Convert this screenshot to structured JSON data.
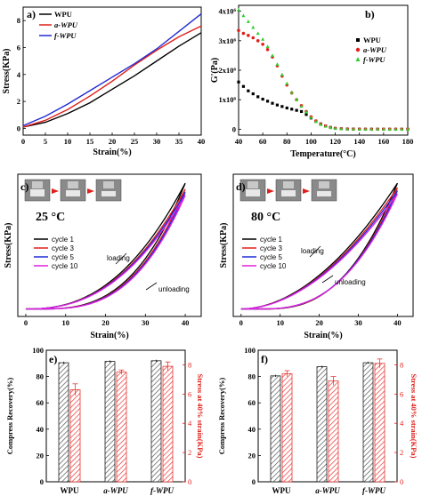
{
  "colors": {
    "black": "#000000",
    "red": "#e0201b",
    "blue": "#1f2bd6",
    "magenta": "#e020e0",
    "green": "#33cc33",
    "bar_gray": "#555555",
    "bar_red": "#ee3333"
  },
  "chart_data": [
    {
      "panel": "a)",
      "type": "line",
      "xlabel": "Strain(%)",
      "ylabel": "Stress(KPa)",
      "xlim": [
        0,
        40
      ],
      "ylim": [
        -0.5,
        9
      ],
      "xticks": [
        0,
        5,
        10,
        15,
        20,
        25,
        30,
        35,
        40
      ],
      "yticks": [
        0,
        2,
        4,
        6,
        8
      ],
      "legend_position": "top-left",
      "series": [
        {
          "name": "WPU",
          "color": "#000000",
          "x": [
            0,
            5,
            10,
            15,
            20,
            25,
            30,
            35,
            40
          ],
          "y": [
            0.1,
            0.45,
            1.1,
            1.9,
            2.9,
            3.9,
            5.0,
            6.1,
            7.1
          ]
        },
        {
          "name": "a-WPU",
          "color": "#e0201b",
          "x": [
            0,
            5,
            10,
            15,
            20,
            25,
            30,
            35,
            40
          ],
          "y": [
            0.1,
            0.6,
            1.4,
            2.4,
            3.5,
            4.7,
            5.8,
            6.8,
            7.6
          ]
        },
        {
          "name": "f-WPU",
          "color": "#1f2bd6",
          "x": [
            0,
            5,
            10,
            15,
            20,
            25,
            30,
            35,
            40
          ],
          "y": [
            0.2,
            0.9,
            1.8,
            2.8,
            3.8,
            4.8,
            5.9,
            7.2,
            8.5
          ]
        }
      ]
    },
    {
      "panel": "b)",
      "type": "scatter",
      "xlabel": "Temperature(°C)",
      "ylabel": "G'(Pa)",
      "xlim": [
        40,
        180
      ],
      "ylim": [
        -200000,
        4200000
      ],
      "xticks": [
        40,
        60,
        80,
        100,
        120,
        140,
        160,
        180
      ],
      "yticks": [
        0,
        1000000,
        2000000,
        3000000,
        4000000
      ],
      "ytick_labels": [
        "0",
        "1x10⁶",
        "2x10⁶",
        "3x10⁶",
        "4x10⁶"
      ],
      "legend_position": "right",
      "series": [
        {
          "name": "WPU",
          "color": "#000000",
          "marker": "square",
          "x": [
            40,
            44,
            48,
            52,
            56,
            60,
            64,
            68,
            72,
            76,
            80,
            84,
            88,
            92,
            96,
            100,
            104,
            108,
            112,
            116,
            120,
            125,
            130,
            135,
            140,
            145,
            150,
            155,
            160,
            165,
            170,
            175,
            180
          ],
          "y": [
            1600000,
            1450000,
            1300000,
            1200000,
            1100000,
            1020000,
            950000,
            880000,
            820000,
            770000,
            720000,
            680000,
            640000,
            600000,
            500000,
            380000,
            270000,
            180000,
            110000,
            60000,
            30000,
            15000,
            8000,
            5000,
            3000,
            2000,
            1500,
            1000,
            800,
            600,
            500,
            400,
            300
          ]
        },
        {
          "name": "a-WPU",
          "color": "#e0201b",
          "marker": "circle",
          "x": [
            40,
            44,
            48,
            52,
            56,
            60,
            64,
            68,
            72,
            76,
            80,
            84,
            88,
            92,
            96,
            100,
            104,
            108,
            112,
            116,
            120,
            125,
            130,
            135,
            140,
            145,
            150,
            155,
            160,
            165,
            170,
            175,
            180
          ],
          "y": [
            3350000,
            3250000,
            3180000,
            3100000,
            3000000,
            2880000,
            2700000,
            2450000,
            2150000,
            1800000,
            1500000,
            1230000,
            1000000,
            800000,
            600000,
            420000,
            280000,
            180000,
            110000,
            60000,
            30000,
            15000,
            8000,
            5000,
            3000,
            2000,
            1500,
            1000,
            800,
            600,
            500,
            400,
            300
          ]
        },
        {
          "name": "f-WPU",
          "color": "#33cc33",
          "marker": "triangle",
          "x": [
            40,
            44,
            48,
            52,
            56,
            60,
            64,
            68,
            72,
            76,
            80,
            84,
            88,
            92,
            96,
            100,
            104,
            108,
            112,
            116,
            120,
            125,
            130,
            135,
            140,
            145,
            150,
            155,
            160,
            165,
            170,
            175,
            180
          ],
          "y": [
            4050000,
            3850000,
            3650000,
            3450000,
            3250000,
            3050000,
            2800000,
            2500000,
            2200000,
            1850000,
            1550000,
            1250000,
            1000000,
            780000,
            580000,
            400000,
            260000,
            160000,
            100000,
            55000,
            30000,
            15000,
            8000,
            5000,
            3000,
            2000,
            1500,
            1000,
            800,
            600,
            500,
            400,
            300
          ]
        }
      ]
    },
    {
      "panel": "c)",
      "type": "line",
      "temperature_label": "25 °C",
      "xlabel": "Strain(%)",
      "ylabel": "Stress(KPa)",
      "xlim": [
        -2,
        44
      ],
      "ylim": [
        -0.5,
        9
      ],
      "xticks": [
        0,
        10,
        20,
        30,
        40
      ],
      "annotations": [
        "loading",
        "unloading"
      ],
      "legend_position": "left",
      "series": [
        {
          "name": "cycle 1",
          "color": "#000000",
          "peak": 8.4,
          "unload_shift": 3.0
        },
        {
          "name": "cycle 3",
          "color": "#e0201b",
          "peak": 8.0,
          "unload_shift": 3.2
        },
        {
          "name": "cycle 5",
          "color": "#1f2bd6",
          "peak": 7.8,
          "unload_shift": 3.4
        },
        {
          "name": "cycle 10",
          "color": "#e020e0",
          "peak": 7.6,
          "unload_shift": 3.6
        }
      ]
    },
    {
      "panel": "d)",
      "type": "line",
      "temperature_label": "80 °C",
      "xlabel": "Strain(%)",
      "ylabel": "Stress(KPa)",
      "xlim": [
        -2,
        44
      ],
      "ylim": [
        -0.5,
        9
      ],
      "xticks": [
        0,
        10,
        20,
        30,
        40
      ],
      "annotations": [
        "loading",
        "unloading"
      ],
      "legend_position": "left",
      "series": [
        {
          "name": "cycle 1",
          "color": "#000000",
          "peak": 8.4,
          "unload_shift": 6.0
        },
        {
          "name": "cycle 3",
          "color": "#e0201b",
          "peak": 8.1,
          "unload_shift": 5.5
        },
        {
          "name": "cycle 5",
          "color": "#1f2bd6",
          "peak": 7.9,
          "unload_shift": 5.0
        },
        {
          "name": "cycle 10",
          "color": "#e020e0",
          "peak": 7.7,
          "unload_shift": 4.8
        }
      ]
    },
    {
      "panel": "e)",
      "type": "bar",
      "categories": [
        "WPU",
        "a-WPU",
        "f-WPU"
      ],
      "ylabel": "Compress Recovery(%)",
      "y2label": "Stress at 40% strain(KPa)",
      "ylim": [
        0,
        100
      ],
      "y2lim": [
        0,
        9
      ],
      "yticks": [
        0,
        20,
        40,
        60,
        80,
        100
      ],
      "y2ticks": [
        0,
        2,
        4,
        6,
        8
      ],
      "series": [
        {
          "name": "Compress Recovery",
          "axis": "left",
          "values": [
            90.5,
            91.5,
            92.0
          ],
          "errors": [
            0.8,
            0.8,
            0.8
          ]
        },
        {
          "name": "Stress at 40% strain",
          "axis": "right",
          "values": [
            6.3,
            7.5,
            7.9
          ],
          "errors": [
            0.4,
            0.15,
            0.3
          ]
        }
      ]
    },
    {
      "panel": "f)",
      "type": "bar",
      "categories": [
        "WPU",
        "a-WPU",
        "f-WPU"
      ],
      "ylabel": "Compress Recovery(%)",
      "y2label": "Stress at 40% strain(KPa)",
      "ylim": [
        0,
        100
      ],
      "y2lim": [
        0,
        9
      ],
      "yticks": [
        0,
        20,
        40,
        60,
        80,
        100
      ],
      "y2ticks": [
        0,
        2,
        4,
        6,
        8
      ],
      "series": [
        {
          "name": "Compress Recovery",
          "axis": "left",
          "values": [
            80.5,
            87.5,
            90.5
          ],
          "errors": [
            0.8,
            0.8,
            0.8
          ]
        },
        {
          "name": "Stress at 40% strain",
          "axis": "right",
          "values": [
            7.4,
            6.9,
            8.1
          ],
          "errors": [
            0.2,
            0.3,
            0.3
          ]
        }
      ]
    }
  ]
}
